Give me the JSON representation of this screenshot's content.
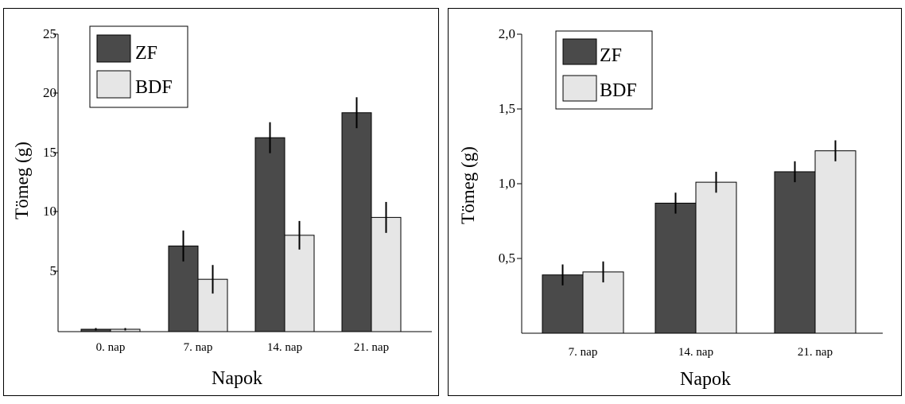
{
  "colors": {
    "zf": "#4a4a4a",
    "bdf": "#e6e6e6",
    "error": "#000000",
    "axis": "#000000"
  },
  "chart_data": [
    {
      "type": "bar",
      "categories": [
        "0. nap",
        "7. nap",
        "14. nap",
        "21. nap"
      ],
      "series": [
        {
          "name": "ZF",
          "values": [
            0.2,
            7.2,
            16.3,
            18.4
          ],
          "errors": [
            0.1,
            1.3,
            1.3,
            1.3
          ]
        },
        {
          "name": "BDF",
          "values": [
            0.2,
            4.4,
            8.1,
            9.6
          ],
          "errors": [
            0.1,
            1.2,
            1.2,
            1.3
          ]
        }
      ],
      "ticks": [
        "25",
        "20",
        "15",
        "10",
        "5"
      ],
      "xlabel": "Napok",
      "ylabel": "Tömeg (g)",
      "ylim": [
        0,
        25
      ],
      "legend_position": "top-left"
    },
    {
      "type": "bar",
      "categories": [
        "7. nap",
        "14. nap",
        "21. nap"
      ],
      "series": [
        {
          "name": "ZF",
          "values": [
            0.39,
            0.87,
            1.08
          ],
          "errors": [
            0.07,
            0.07,
            0.07
          ]
        },
        {
          "name": "BDF",
          "values": [
            0.41,
            1.01,
            1.22
          ],
          "errors": [
            0.07,
            0.07,
            0.07
          ]
        }
      ],
      "ticks": [
        "2,0",
        "1,5",
        "1,0",
        "0,5"
      ],
      "xlabel": "Napok",
      "ylabel": "Tömeg (g)",
      "ylim": [
        0,
        2.0
      ],
      "legend_position": "top-left"
    }
  ]
}
